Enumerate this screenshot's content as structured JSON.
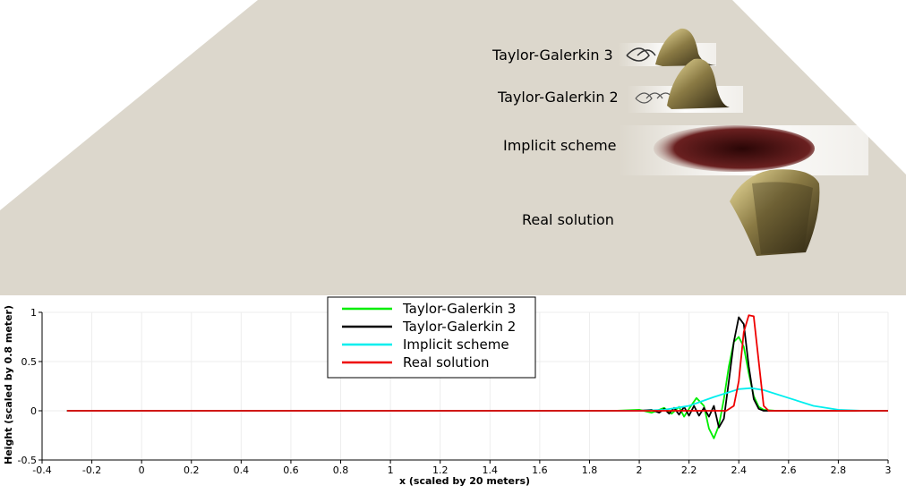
{
  "scene": {
    "labels": [
      "Taylor-Galerkin 3",
      "Taylor-Galerkin 2",
      "Implicit scheme",
      "Real solution"
    ],
    "floor_color": "#dcd7cc",
    "wave_color": "#6a5a36",
    "shadow_color": "#3a1010"
  },
  "chart_data": {
    "type": "line",
    "title": "",
    "xlabel": "x (scaled by 20 meters)",
    "ylabel": "Height (scaled by 0.8 meter)",
    "xlim": [
      -0.4,
      3
    ],
    "ylim": [
      -0.5,
      1
    ],
    "xticks": [
      "-0.4",
      "-0.2",
      "0",
      "0.2",
      "0.4",
      "0.6",
      "0.8",
      "1",
      "1.2",
      "1.4",
      "1.6",
      "1.8",
      "2",
      "2.2",
      "2.4",
      "2.6",
      "2.8",
      "3"
    ],
    "yticks": [
      "-0.5",
      "0",
      "0.5",
      "1"
    ],
    "grid": true,
    "legend": "top-center",
    "series": [
      {
        "name": "Taylor-Galerkin 3",
        "color": "#00ee00",
        "x": [
          -0.3,
          1.9,
          2.0,
          2.05,
          2.1,
          2.13,
          2.16,
          2.18,
          2.2,
          2.23,
          2.26,
          2.28,
          2.3,
          2.32,
          2.34,
          2.36,
          2.38,
          2.4,
          2.42,
          2.44,
          2.46,
          2.48,
          2.5,
          2.55,
          2.6,
          3.0
        ],
        "y": [
          0,
          0,
          0.01,
          -0.02,
          0.03,
          -0.03,
          0.04,
          -0.06,
          0.02,
          0.13,
          0.05,
          -0.18,
          -0.28,
          -0.15,
          0.12,
          0.45,
          0.7,
          0.75,
          0.65,
          0.38,
          0.15,
          0.04,
          0.01,
          0,
          0,
          0
        ]
      },
      {
        "name": "Taylor-Galerkin 2",
        "color": "#000000",
        "x": [
          -0.3,
          1.9,
          2.0,
          2.05,
          2.08,
          2.1,
          2.12,
          2.14,
          2.16,
          2.18,
          2.2,
          2.22,
          2.24,
          2.26,
          2.28,
          2.3,
          2.32,
          2.34,
          2.36,
          2.38,
          2.4,
          2.42,
          2.44,
          2.46,
          2.48,
          2.5,
          3.0
        ],
        "y": [
          0,
          0,
          0,
          0.01,
          -0.02,
          0.02,
          -0.03,
          0.03,
          -0.04,
          0.04,
          -0.05,
          0.05,
          -0.05,
          0.03,
          -0.06,
          0.05,
          -0.17,
          -0.08,
          0.3,
          0.7,
          0.95,
          0.88,
          0.45,
          0.12,
          0.02,
          0,
          0
        ]
      },
      {
        "name": "Implicit scheme",
        "color": "#00eeee",
        "x": [
          -0.3,
          2.0,
          2.1,
          2.2,
          2.3,
          2.4,
          2.45,
          2.5,
          2.6,
          2.7,
          2.8,
          2.9,
          3.0
        ],
        "y": [
          0,
          0,
          0.01,
          0.05,
          0.14,
          0.22,
          0.23,
          0.21,
          0.13,
          0.05,
          0.01,
          0,
          0
        ]
      },
      {
        "name": "Real solution",
        "color": "#ee0000",
        "x": [
          -0.3,
          2.35,
          2.38,
          2.4,
          2.42,
          2.44,
          2.46,
          2.48,
          2.5,
          2.52,
          2.54,
          3.0
        ],
        "y": [
          0,
          0,
          0.05,
          0.3,
          0.8,
          0.97,
          0.96,
          0.5,
          0.05,
          0,
          0,
          0
        ]
      }
    ]
  }
}
